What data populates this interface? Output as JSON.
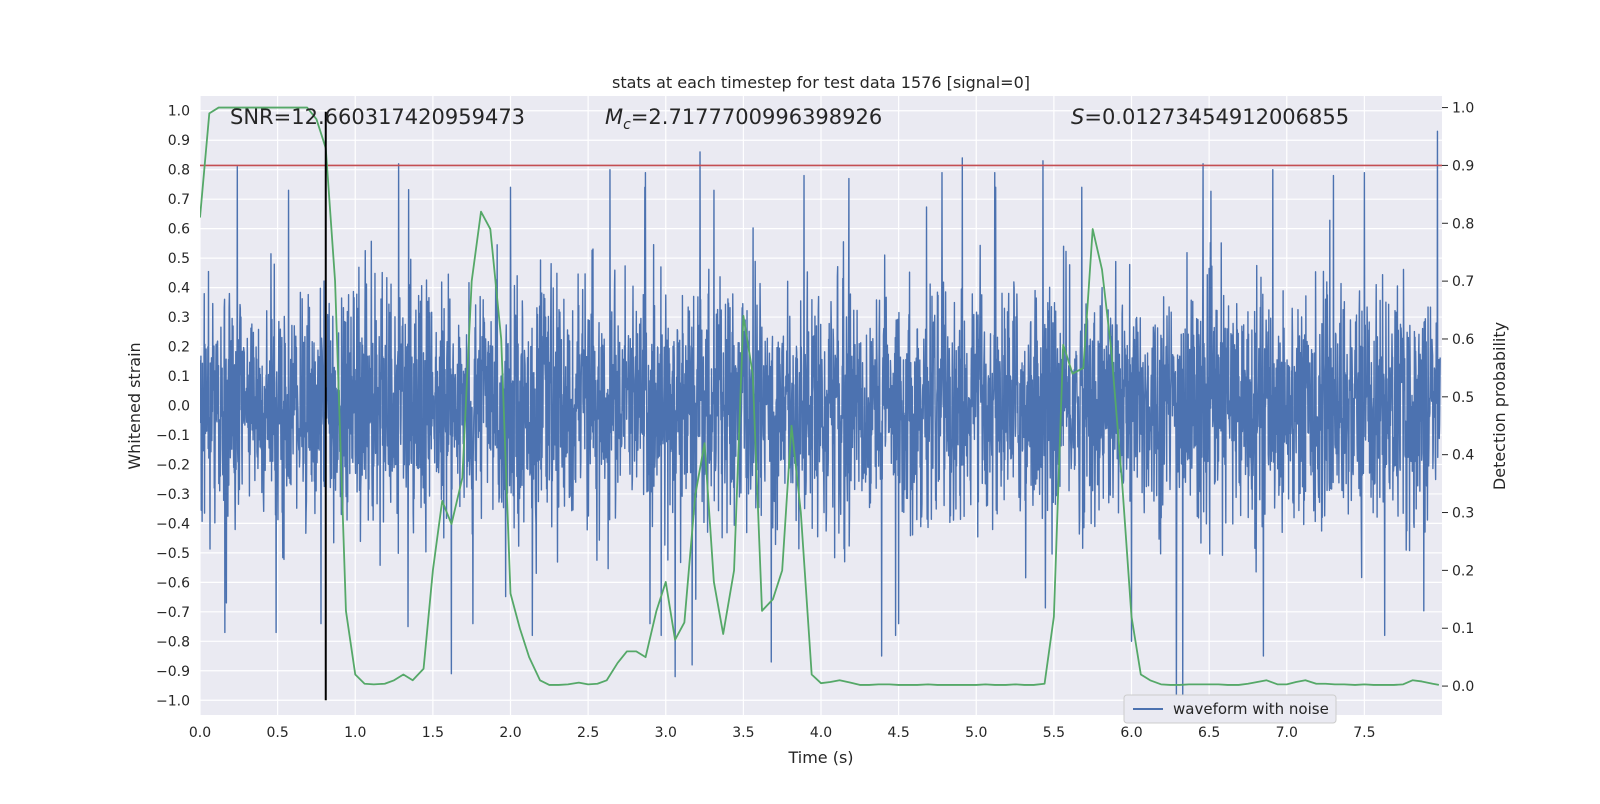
{
  "chart_data": {
    "type": "line",
    "title": "stats at each timestep for test data 1576 [signal=0]",
    "xlabel": "Time (s)",
    "ylabel": "Whitened strain",
    "ylabel_right": "Detection probability",
    "xlim": [
      0.0,
      8.0
    ],
    "ylim": [
      -1.05,
      1.05
    ],
    "ylim_right": [
      -0.05,
      1.02
    ],
    "x_ticks": [
      "0.0",
      "0.5",
      "1.0",
      "1.5",
      "2.0",
      "2.5",
      "3.0",
      "3.5",
      "4.0",
      "4.5",
      "5.0",
      "5.5",
      "6.0",
      "6.5",
      "7.0",
      "7.5"
    ],
    "y_ticks": [
      "1.0",
      "0.9",
      "0.8",
      "0.7",
      "0.6",
      "0.5",
      "0.4",
      "0.3",
      "0.2",
      "0.1",
      "0.0",
      "−0.1",
      "−0.2",
      "−0.3",
      "−0.4",
      "−0.5",
      "−0.6",
      "−0.7",
      "−0.8",
      "−0.9",
      "−1.0"
    ],
    "y_right_ticks": [
      "1.0",
      "0.9",
      "0.8",
      "0.7",
      "0.6",
      "0.5",
      "0.4",
      "0.3",
      "0.2",
      "0.1",
      "0.0"
    ],
    "grid": true,
    "background": "#eaeaf2",
    "annotations": {
      "snr": "SNR=12.660317420959473",
      "mc_symbol": "M",
      "mc_sub": "c",
      "mc_value": "=2.7177700996398926",
      "s_symbol": "S",
      "s_value": "=0.01273454912006855"
    },
    "threshold": {
      "value": 0.9,
      "axis": "right",
      "color": "#c44e52"
    },
    "vline": {
      "x": 0.81,
      "color": "#000000"
    },
    "legend": {
      "position": "lower-right",
      "entries": [
        "waveform with noise"
      ]
    },
    "series": [
      {
        "name": "waveform with noise",
        "axis": "left",
        "color": "#4c72b0",
        "sample_rate": 512,
        "duration": 7.99,
        "envelope": 0.36,
        "spikes": [
          {
            "x": 0.24,
            "y": 0.81
          },
          {
            "x": 0.16,
            "y": -0.77
          },
          {
            "x": 0.49,
            "y": -0.77
          },
          {
            "x": 0.57,
            "y": 0.73
          },
          {
            "x": 0.78,
            "y": -0.74
          },
          {
            "x": 1.28,
            "y": 0.82
          },
          {
            "x": 1.34,
            "y": -0.75
          },
          {
            "x": 1.62,
            "y": -0.91
          },
          {
            "x": 2.0,
            "y": 0.74
          },
          {
            "x": 2.14,
            "y": -0.78
          },
          {
            "x": 2.64,
            "y": 0.8
          },
          {
            "x": 2.87,
            "y": 0.79
          },
          {
            "x": 2.97,
            "y": -0.78
          },
          {
            "x": 3.06,
            "y": -0.92
          },
          {
            "x": 3.17,
            "y": -0.88
          },
          {
            "x": 3.22,
            "y": 0.86
          },
          {
            "x": 3.31,
            "y": 0.73
          },
          {
            "x": 3.68,
            "y": -0.87
          },
          {
            "x": 3.89,
            "y": 0.78
          },
          {
            "x": 4.18,
            "y": 0.77
          },
          {
            "x": 4.39,
            "y": -0.85
          },
          {
            "x": 4.48,
            "y": -0.78
          },
          {
            "x": 4.78,
            "y": 0.79
          },
          {
            "x": 4.91,
            "y": 0.84
          },
          {
            "x": 5.12,
            "y": 0.79
          },
          {
            "x": 5.43,
            "y": 0.83
          },
          {
            "x": 5.68,
            "y": -0.97
          },
          {
            "x": 5.68,
            "y": 0.74
          },
          {
            "x": 6.0,
            "y": -0.8
          },
          {
            "x": 6.29,
            "y": -1.0
          },
          {
            "x": 6.33,
            "y": -1.0
          },
          {
            "x": 6.46,
            "y": 0.82
          },
          {
            "x": 6.85,
            "y": -0.85
          },
          {
            "x": 6.91,
            "y": 0.8
          },
          {
            "x": 7.3,
            "y": 0.78
          },
          {
            "x": 7.5,
            "y": 0.79
          },
          {
            "x": 7.63,
            "y": -0.78
          },
          {
            "x": 7.97,
            "y": 0.93
          }
        ]
      },
      {
        "name": "Detection probability",
        "axis": "right",
        "color": "#55a868",
        "x": [
          0.0,
          0.06,
          0.12,
          0.19,
          0.25,
          0.31,
          0.37,
          0.44,
          0.5,
          0.56,
          0.62,
          0.69,
          0.75,
          0.81,
          0.87,
          0.94,
          1.0,
          1.06,
          1.12,
          1.19,
          1.25,
          1.31,
          1.37,
          1.44,
          1.5,
          1.56,
          1.62,
          1.69,
          1.75,
          1.81,
          1.87,
          1.94,
          2.0,
          2.06,
          2.12,
          2.19,
          2.25,
          2.31,
          2.37,
          2.44,
          2.5,
          2.56,
          2.62,
          2.69,
          2.75,
          2.81,
          2.87,
          2.94,
          3.0,
          3.06,
          3.12,
          3.19,
          3.25,
          3.31,
          3.37,
          3.44,
          3.5,
          3.56,
          3.62,
          3.69,
          3.75,
          3.81,
          3.87,
          3.94,
          4.0,
          4.06,
          4.12,
          4.19,
          4.25,
          4.31,
          4.37,
          4.44,
          4.5,
          4.56,
          4.62,
          4.69,
          4.75,
          4.81,
          4.87,
          4.94,
          5.0,
          5.06,
          5.12,
          5.19,
          5.25,
          5.31,
          5.37,
          5.44,
          5.5,
          5.56,
          5.62,
          5.69,
          5.75,
          5.81,
          5.87,
          5.94,
          6.0,
          6.06,
          6.12,
          6.19,
          6.25,
          6.31,
          6.37,
          6.44,
          6.5,
          6.56,
          6.62,
          6.69,
          6.75,
          6.81,
          6.87,
          6.94,
          7.0,
          7.06,
          7.12,
          7.19,
          7.25,
          7.31,
          7.37,
          7.44,
          7.5,
          7.56,
          7.62,
          7.69,
          7.75,
          7.81,
          7.87,
          7.94,
          7.98
        ],
        "values": [
          0.81,
          0.99,
          1.0,
          1.0,
          1.0,
          1.0,
          1.0,
          1.0,
          1.0,
          1.0,
          1.0,
          1.0,
          0.98,
          0.93,
          0.7,
          0.13,
          0.02,
          0.004,
          0.003,
          0.004,
          0.01,
          0.02,
          0.01,
          0.03,
          0.2,
          0.32,
          0.28,
          0.36,
          0.7,
          0.82,
          0.79,
          0.6,
          0.16,
          0.1,
          0.05,
          0.01,
          0.002,
          0.002,
          0.003,
          0.006,
          0.003,
          0.004,
          0.01,
          0.04,
          0.06,
          0.06,
          0.05,
          0.13,
          0.18,
          0.08,
          0.11,
          0.33,
          0.42,
          0.18,
          0.09,
          0.2,
          0.64,
          0.54,
          0.13,
          0.15,
          0.2,
          0.45,
          0.3,
          0.02,
          0.005,
          0.007,
          0.01,
          0.006,
          0.002,
          0.002,
          0.003,
          0.003,
          0.002,
          0.002,
          0.002,
          0.003,
          0.002,
          0.002,
          0.002,
          0.002,
          0.002,
          0.003,
          0.002,
          0.002,
          0.003,
          0.002,
          0.002,
          0.004,
          0.12,
          0.59,
          0.54,
          0.55,
          0.79,
          0.72,
          0.58,
          0.35,
          0.12,
          0.02,
          0.01,
          0.003,
          0.002,
          0.002,
          0.003,
          0.003,
          0.003,
          0.003,
          0.002,
          0.002,
          0.004,
          0.007,
          0.01,
          0.003,
          0.003,
          0.007,
          0.01,
          0.004,
          0.004,
          0.003,
          0.003,
          0.002,
          0.003,
          0.002,
          0.002,
          0.002,
          0.003,
          0.01,
          0.008,
          0.004,
          0.002
        ]
      }
    ]
  }
}
